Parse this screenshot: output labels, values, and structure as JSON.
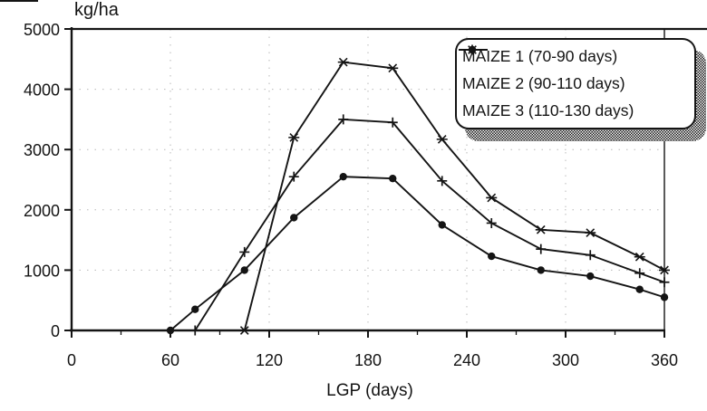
{
  "colors": {
    "ink": "#141414",
    "background": "#ffffff",
    "grid": "#b9b9b9"
  },
  "chart_data": {
    "type": "line",
    "title": "",
    "ylabel": "kg/ha",
    "xlabel": "LGP (days)",
    "xlim": [
      0,
      360
    ],
    "ylim": [
      0,
      5000
    ],
    "x_ticks": [
      0,
      60,
      120,
      180,
      240,
      300,
      360
    ],
    "x_minor_ticks": [
      30,
      90,
      150,
      210,
      270,
      330
    ],
    "y_ticks": [
      0,
      1000,
      2000,
      3000,
      4000,
      5000
    ],
    "grid": "faint-dotted",
    "legend_position": "top-right",
    "series": [
      {
        "name": "MAIZE 1 (70-90 days)",
        "marker": "circle",
        "x": [
          60,
          75,
          105,
          135,
          165,
          195,
          225,
          255,
          285,
          315,
          345,
          360
        ],
        "y": [
          0,
          350,
          1000,
          1870,
          2550,
          2520,
          1750,
          1230,
          1000,
          900,
          680,
          550
        ]
      },
      {
        "name": "MAIZE 2 (90-110 days)",
        "marker": "plus",
        "x": [
          75,
          105,
          135,
          165,
          195,
          225,
          255,
          285,
          315,
          345,
          360
        ],
        "y": [
          0,
          1300,
          2550,
          3500,
          3450,
          2480,
          1780,
          1350,
          1250,
          950,
          800
        ]
      },
      {
        "name": "MAIZE 3 (110-130 days)",
        "marker": "star",
        "x": [
          105,
          135,
          165,
          195,
          225,
          255,
          285,
          315,
          345,
          360
        ],
        "y": [
          0,
          3200,
          4450,
          4350,
          3170,
          2200,
          1670,
          1620,
          1220,
          1000
        ]
      }
    ]
  }
}
